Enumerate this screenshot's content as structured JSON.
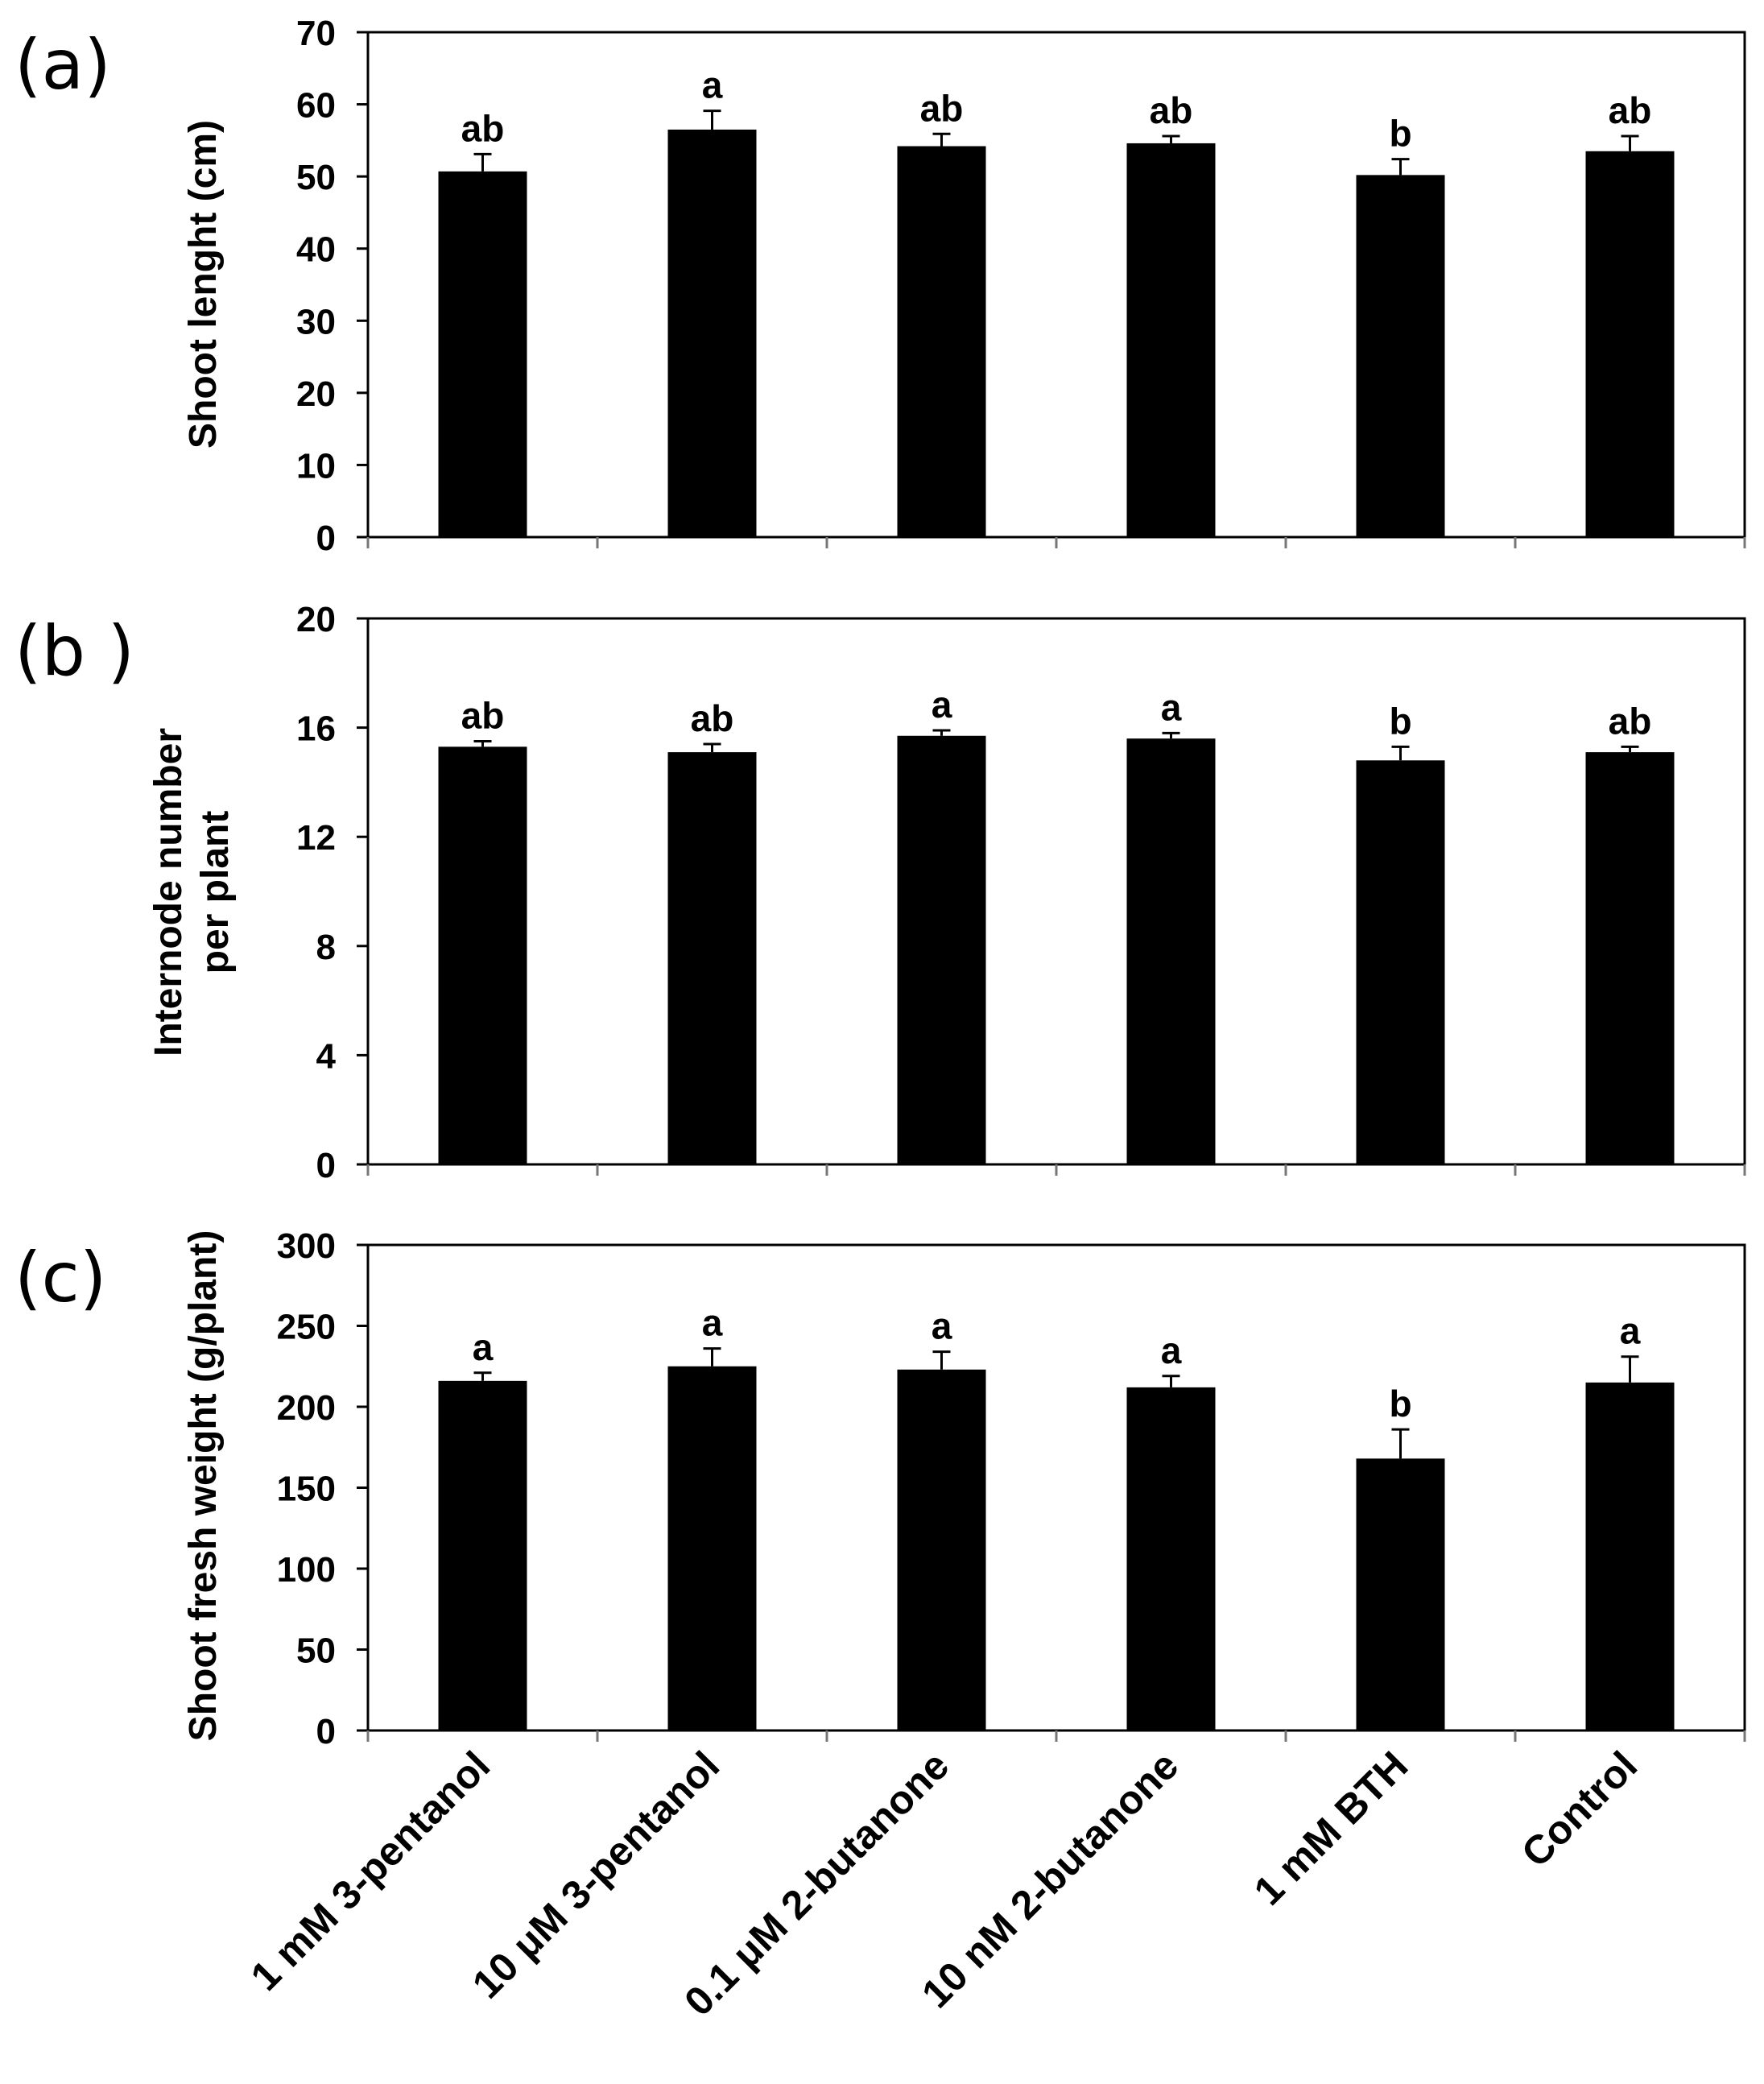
{
  "chart_data": [
    {
      "panel_label": "(a)",
      "type": "bar",
      "ylabel": "Shoot lenght (cm)",
      "ylabel_lines": [
        "Shoot lenght (cm)"
      ],
      "ylim": [
        0,
        70
      ],
      "yticks": [
        0,
        10,
        20,
        30,
        40,
        50,
        60,
        70
      ],
      "categories": [
        "1 mM 3-pentanol",
        "10 μM 3-pentanol",
        "0.1 μM 2-butanone",
        "10 nM 2-butanone",
        "1 mM BTH",
        "Control"
      ],
      "values": [
        50.7,
        56.5,
        54.2,
        54.6,
        50.2,
        53.5
      ],
      "errors": [
        2.4,
        2.6,
        1.7,
        1.0,
        2.2,
        2.1
      ],
      "letters": [
        "ab",
        "a",
        "ab",
        "ab",
        "b",
        "ab"
      ]
    },
    {
      "panel_label": "(b )",
      "type": "bar",
      "ylabel": "Internode number per plant",
      "ylabel_lines": [
        "Internode number",
        "per plant"
      ],
      "ylim": [
        0,
        20
      ],
      "yticks": [
        0,
        4,
        8,
        12,
        16,
        20
      ],
      "categories": [
        "1 mM 3-pentanol",
        "10 μM 3-pentanol",
        "0.1 μM 2-butanone",
        "10 nM 2-butanone",
        "1 mM BTH",
        "Control"
      ],
      "values": [
        15.3,
        15.1,
        15.7,
        15.6,
        14.8,
        15.1
      ],
      "errors": [
        0.2,
        0.3,
        0.2,
        0.2,
        0.5,
        0.2
      ],
      "letters": [
        "ab",
        "ab",
        "a",
        "a",
        "b",
        "ab"
      ]
    },
    {
      "panel_label": "(c)",
      "type": "bar",
      "ylabel": "Shoot fresh weight (g/plant)",
      "ylabel_lines": [
        "Shoot fresh weight (g/plant)"
      ],
      "ylim": [
        0,
        300
      ],
      "yticks": [
        0,
        50,
        100,
        150,
        200,
        250,
        300
      ],
      "categories": [
        "1 mM 3-pentanol",
        "10 μM 3-pentanol",
        "0.1 μM 2-butanone",
        "10 nM 2-butanone",
        "1 mM BTH",
        "Control"
      ],
      "values": [
        216,
        225,
        223,
        212,
        168,
        215
      ],
      "errors": [
        5,
        11,
        11,
        7,
        18,
        16
      ],
      "letters": [
        "a",
        "a",
        "a",
        "a",
        "b",
        "a"
      ]
    }
  ]
}
